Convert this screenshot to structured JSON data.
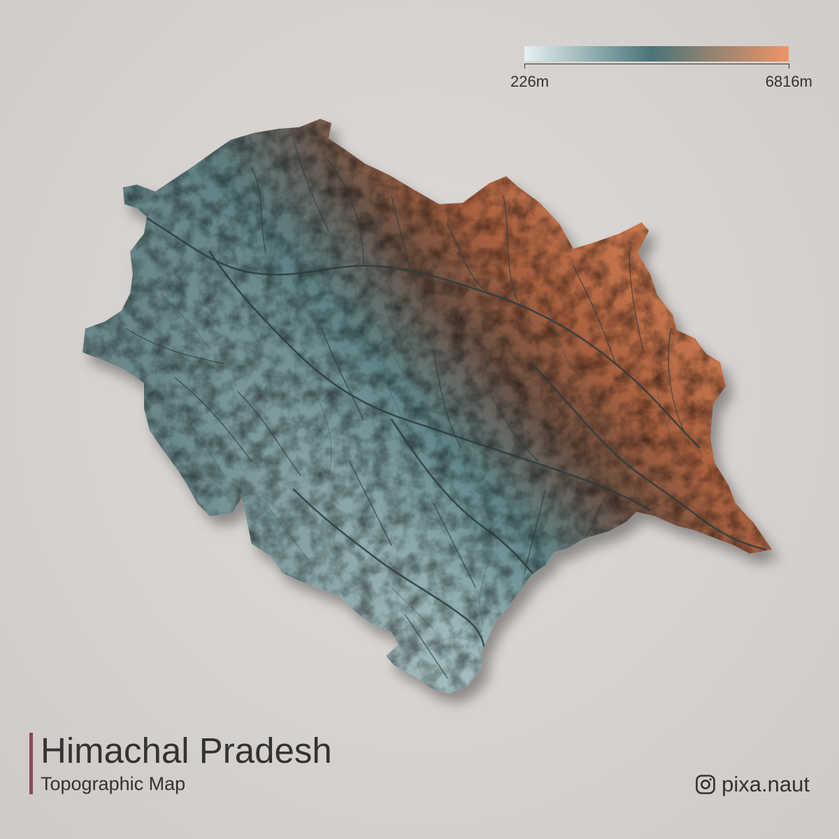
{
  "title": "Himachal Pradesh",
  "subtitle": "Topographic Map",
  "legend": {
    "min_label": "226m",
    "max_label": "6816m",
    "colors": [
      "#e6f1f2",
      "#4a7478",
      "#ef9467"
    ]
  },
  "credit": {
    "icon": "instagram-icon",
    "handle": "pixa.naut"
  },
  "colors": {
    "background": "#d6d2cf",
    "text": "#333333",
    "accent_bar": "#8a4a5a",
    "low_elevation": "#c4d8db",
    "mid_elevation": "#5f8488",
    "high_elevation": "#b8694a",
    "river": "#2c3d40"
  }
}
